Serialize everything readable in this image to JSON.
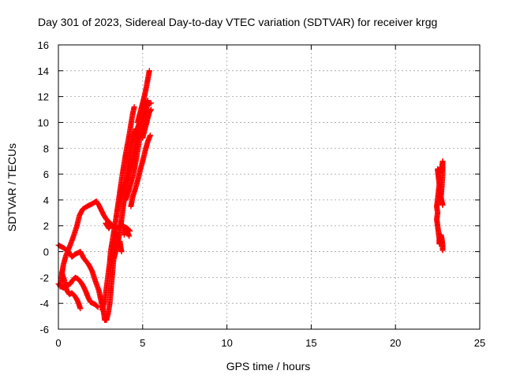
{
  "chart_data": {
    "type": "scatter",
    "title": "Day 301 of 2023, Sidereal Day-to-day VTEC variation (SDTVAR) for receiver krgg",
    "xlabel": "GPS time / hours",
    "ylabel": "SDTVAR / TECUs",
    "xlim": [
      0,
      25
    ],
    "ylim": [
      -6,
      16
    ],
    "xticks": [
      0,
      5,
      10,
      15,
      20,
      25
    ],
    "yticks": [
      -6,
      -4,
      -2,
      0,
      2,
      4,
      6,
      8,
      10,
      12,
      14,
      16
    ],
    "grid": true,
    "marker": "plus",
    "colors": {
      "series": "#ff0000"
    },
    "series": [
      {
        "tracks": [
          [
            [
              0.0,
              0.5
            ],
            [
              0.3,
              0.3
            ],
            [
              0.6,
              0.0
            ],
            [
              0.8,
              -0.4
            ],
            [
              1.0,
              -0.2
            ],
            [
              1.3,
              0.0
            ],
            [
              1.5,
              -0.5
            ],
            [
              1.8,
              -1.0
            ],
            [
              2.0,
              -1.5
            ],
            [
              2.2,
              -2.3
            ],
            [
              2.4,
              -3.0
            ],
            [
              2.5,
              -3.6
            ],
            [
              2.6,
              -4.2
            ],
            [
              2.7,
              -4.8
            ],
            [
              2.75,
              -5.3
            ],
            [
              2.85,
              -5.3
            ],
            [
              2.95,
              -4.8
            ],
            [
              3.05,
              -4.0
            ],
            [
              3.15,
              -2.5
            ],
            [
              3.25,
              -1.0
            ],
            [
              3.35,
              0.5
            ],
            [
              3.45,
              1.5
            ]
          ],
          [
            [
              0.1,
              -2.7
            ],
            [
              0.2,
              -1.8
            ],
            [
              0.3,
              -1.0
            ],
            [
              0.45,
              -0.3
            ],
            [
              0.7,
              0.5
            ],
            [
              0.9,
              1.2
            ],
            [
              1.1,
              2.0
            ],
            [
              1.25,
              2.8
            ],
            [
              1.45,
              3.3
            ],
            [
              1.7,
              3.5
            ],
            [
              2.0,
              3.7
            ],
            [
              2.25,
              3.9
            ],
            [
              2.4,
              3.6
            ],
            [
              2.55,
              3.2
            ],
            [
              2.7,
              2.8
            ],
            [
              2.85,
              2.5
            ],
            [
              3.0,
              2.3
            ],
            [
              3.2,
              2.0
            ],
            [
              3.4,
              1.8
            ],
            [
              3.6,
              1.9
            ],
            [
              3.8,
              2.0
            ],
            [
              3.95,
              1.9
            ],
            [
              4.1,
              1.8
            ],
            [
              4.25,
              1.6
            ]
          ],
          [
            [
              0.0,
              -2.5
            ],
            [
              0.15,
              -2.7
            ],
            [
              0.3,
              -2.8
            ],
            [
              0.5,
              -2.6
            ],
            [
              0.7,
              -2.5
            ],
            [
              0.85,
              -2.2
            ],
            [
              1.0,
              -2.0
            ],
            [
              1.15,
              -2.1
            ],
            [
              1.3,
              -2.3
            ],
            [
              1.45,
              -2.6
            ],
            [
              1.6,
              -3.0
            ],
            [
              1.75,
              -3.5
            ],
            [
              1.9,
              -3.9
            ],
            [
              2.05,
              -4.0
            ],
            [
              2.2,
              -4.1
            ],
            [
              2.35,
              -4.3
            ]
          ],
          [
            [
              0.2,
              -1.6
            ],
            [
              0.35,
              -2.2
            ],
            [
              0.5,
              -3.0
            ],
            [
              0.65,
              -3.3
            ],
            [
              0.8,
              -3.2
            ],
            [
              0.95,
              -3.4
            ],
            [
              1.1,
              -3.7
            ],
            [
              1.2,
              -4.0
            ],
            [
              1.3,
              -4.4
            ]
          ],
          [
            [
              2.6,
              -4.5
            ],
            [
              2.75,
              -3.8
            ],
            [
              2.85,
              -2.8
            ],
            [
              2.95,
              -1.8
            ],
            [
              3.05,
              -0.8
            ],
            [
              3.1,
              0.0
            ],
            [
              3.2,
              0.8
            ],
            [
              3.3,
              1.6
            ],
            [
              3.4,
              2.4
            ],
            [
              3.5,
              3.3
            ],
            [
              3.6,
              4.2
            ],
            [
              3.7,
              5.1
            ],
            [
              3.8,
              6.0
            ],
            [
              3.9,
              6.8
            ],
            [
              4.0,
              7.6
            ],
            [
              4.1,
              8.3
            ],
            [
              4.2,
              9.0
            ],
            [
              4.3,
              9.8
            ],
            [
              4.4,
              10.6
            ],
            [
              4.5,
              11.2
            ]
          ],
          [
            [
              3.3,
              -0.5
            ],
            [
              3.4,
              0.0
            ],
            [
              3.5,
              0.5
            ],
            [
              3.6,
              1.2
            ],
            [
              3.7,
              2.0
            ],
            [
              3.8,
              3.0
            ],
            [
              3.9,
              4.0
            ],
            [
              4.0,
              5.0
            ],
            [
              4.1,
              6.2
            ],
            [
              4.2,
              7.4
            ],
            [
              4.35,
              8.4
            ],
            [
              4.45,
              9.0
            ],
            [
              4.6,
              9.5
            ]
          ],
          [
            [
              3.5,
              3.2
            ],
            [
              3.75,
              4.5
            ],
            [
              3.95,
              5.2
            ],
            [
              4.1,
              5.7
            ],
            [
              4.3,
              6.6
            ],
            [
              4.45,
              7.5
            ],
            [
              4.6,
              8.5
            ],
            [
              4.7,
              9.5
            ],
            [
              4.85,
              10.3
            ],
            [
              5.0,
              10.8
            ],
            [
              5.15,
              11.3
            ],
            [
              5.3,
              11.7
            ]
          ],
          [
            [
              4.0,
              4.0
            ],
            [
              4.15,
              4.6
            ],
            [
              4.3,
              5.3
            ],
            [
              4.45,
              6.0
            ],
            [
              4.6,
              7.0
            ],
            [
              4.75,
              8.2
            ],
            [
              4.9,
              9.3
            ],
            [
              5.0,
              10.0
            ],
            [
              5.1,
              10.6
            ],
            [
              5.2,
              11.0
            ],
            [
              5.3,
              11.4
            ],
            [
              5.5,
              11.5
            ]
          ],
          [
            [
              4.3,
              3.5
            ],
            [
              4.4,
              4.2
            ],
            [
              4.55,
              4.8
            ],
            [
              4.7,
              5.5
            ],
            [
              4.85,
              6.3
            ],
            [
              5.0,
              7.0
            ],
            [
              5.15,
              7.8
            ],
            [
              5.3,
              8.5
            ],
            [
              5.45,
              9.0
            ]
          ],
          [
            [
              4.7,
              10.0
            ],
            [
              4.8,
              10.5
            ],
            [
              4.9,
              11.0
            ],
            [
              5.0,
              11.5
            ],
            [
              5.1,
              12.0
            ],
            [
              5.2,
              12.6
            ],
            [
              5.3,
              13.3
            ],
            [
              5.4,
              14.0
            ]
          ],
          [
            [
              5.0,
              8.8
            ],
            [
              5.1,
              9.3
            ],
            [
              5.2,
              9.8
            ],
            [
              5.3,
              10.3
            ],
            [
              5.4,
              10.8
            ],
            [
              5.5,
              11.0
            ]
          ],
          [
            [
              3.9,
              1.3
            ],
            [
              4.0,
              1.8
            ],
            [
              4.1,
              1.5
            ],
            [
              4.2,
              1.2
            ]
          ],
          [
            [
              2.8,
              2.2
            ],
            [
              2.9,
              2.0
            ],
            [
              3.0,
              1.8
            ],
            [
              3.1,
              2.1
            ]
          ],
          [
            [
              3.65,
              0.8
            ],
            [
              3.7,
              0.3
            ],
            [
              3.75,
              0.0
            ]
          ],
          [
            [
              22.5,
              6.3
            ],
            [
              22.55,
              5.8
            ],
            [
              22.6,
              5.2
            ],
            [
              22.55,
              4.6
            ],
            [
              22.5,
              4.0
            ],
            [
              22.45,
              3.5
            ],
            [
              22.5,
              3.0
            ],
            [
              22.45,
              2.5
            ],
            [
              22.5,
              2.0
            ],
            [
              22.55,
              1.5
            ],
            [
              22.6,
              1.0
            ],
            [
              22.6,
              0.6
            ],
            [
              22.65,
              0.8
            ],
            [
              22.7,
              1.3
            ],
            [
              22.75,
              1.0
            ],
            [
              22.8,
              0.5
            ],
            [
              22.8,
              0.1
            ]
          ],
          [
            [
              22.5,
              6.4
            ],
            [
              22.6,
              6.3
            ],
            [
              22.7,
              6.2
            ],
            [
              22.75,
              6.5
            ],
            [
              22.8,
              7.0
            ],
            [
              22.8,
              6.0
            ],
            [
              22.75,
              5.0
            ],
            [
              22.7,
              4.2
            ],
            [
              22.75,
              3.9
            ],
            [
              22.8,
              3.6
            ]
          ]
        ]
      }
    ]
  }
}
